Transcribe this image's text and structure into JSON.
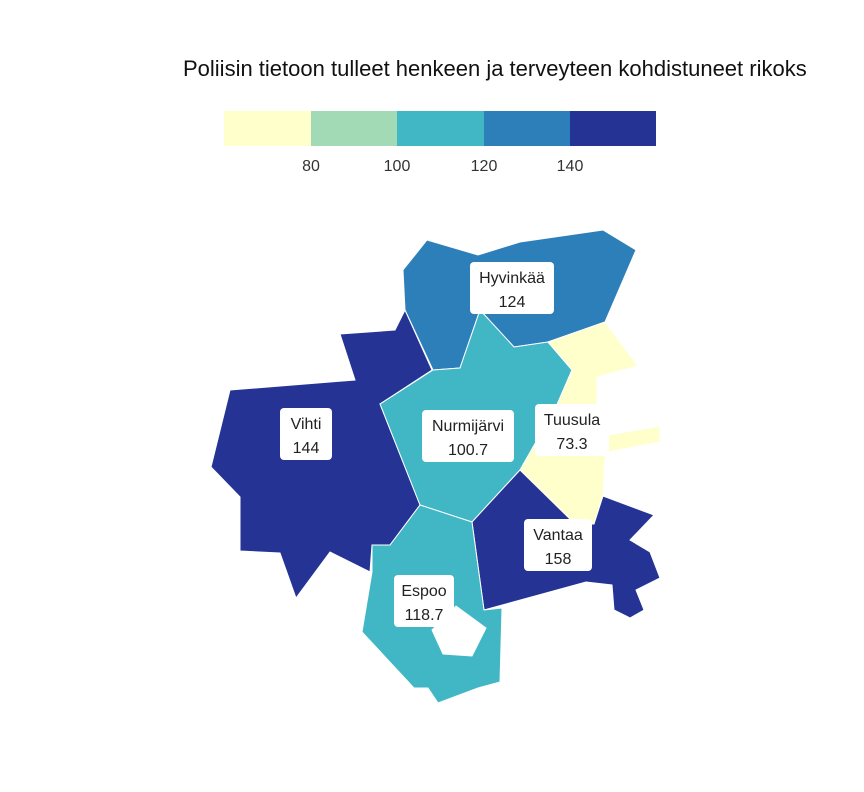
{
  "title": "Poliisin tietoon tulleet henkeen ja terveyteen kohdistuneet rikoks",
  "legend": {
    "bins": [
      {
        "color": "#ffffcc"
      },
      {
        "color": "#a1dab4"
      },
      {
        "color": "#41b6c4"
      },
      {
        "color": "#2c7fb8"
      },
      {
        "color": "#253494"
      }
    ],
    "tick_labels": [
      "80",
      "100",
      "120",
      "140"
    ]
  },
  "regions": [
    {
      "id": "hyvinkaa",
      "name": "Hyvinkää",
      "value": "124",
      "color": "#2c7fb8"
    },
    {
      "id": "nurmijarvi",
      "name": "Nurmijärvi",
      "value": "100.7",
      "color": "#41b6c4"
    },
    {
      "id": "tuusula",
      "name": "Tuusula",
      "value": "73.3",
      "color": "#ffffcc"
    },
    {
      "id": "vihti",
      "name": "Vihti",
      "value": "144",
      "color": "#253494"
    },
    {
      "id": "vantaa",
      "name": "Vantaa",
      "value": "158",
      "color": "#253494"
    },
    {
      "id": "espoo",
      "name": "Espoo",
      "value": "118.7",
      "color": "#41b6c4"
    }
  ]
}
